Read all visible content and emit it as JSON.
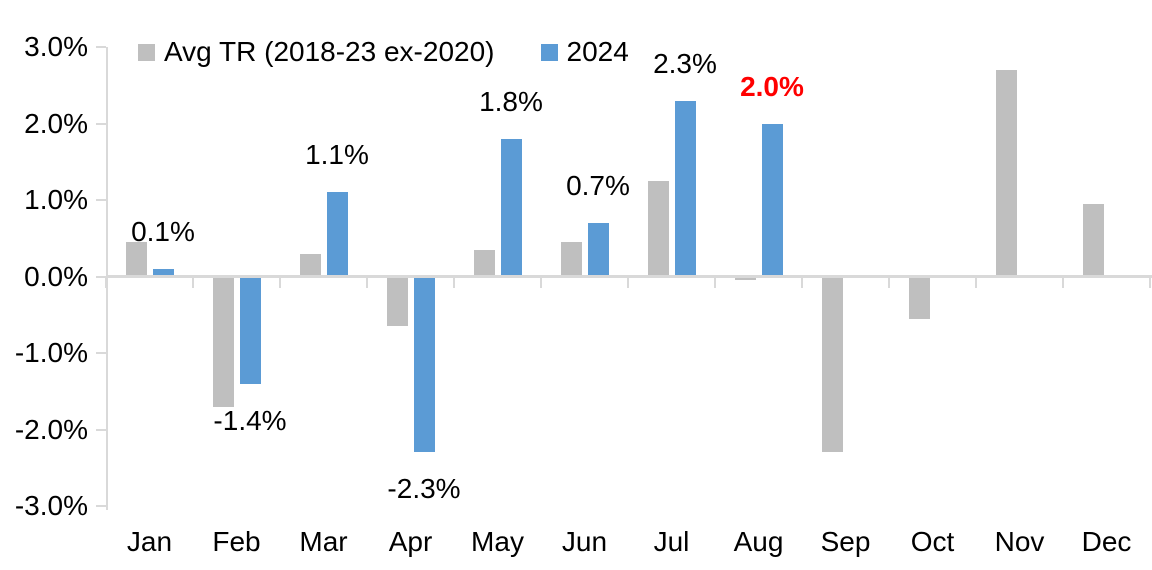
{
  "chart_data": {
    "type": "bar",
    "title": "",
    "categories": [
      "Jan",
      "Feb",
      "Mar",
      "Apr",
      "May",
      "Jun",
      "Jul",
      "Aug",
      "Sep",
      "Oct",
      "Nov",
      "Dec"
    ],
    "series": [
      {
        "name": "Avg TR (2018-23 ex-2020)",
        "color": "#bfbfbf",
        "values": [
          0.45,
          -1.7,
          0.3,
          -0.65,
          0.35,
          0.45,
          1.25,
          -0.05,
          -2.3,
          -0.55,
          2.7,
          0.95
        ]
      },
      {
        "name": "2024",
        "color": "#5b9bd5",
        "values": [
          0.1,
          -1.4,
          1.1,
          -2.3,
          1.8,
          0.7,
          2.3,
          2.0,
          null,
          null,
          null,
          null
        ]
      }
    ],
    "data_labels": [
      {
        "text": "0.1%",
        "color": "#000000",
        "bold": false
      },
      {
        "text": "-1.4%",
        "color": "#000000",
        "bold": false
      },
      {
        "text": "1.1%",
        "color": "#000000",
        "bold": false
      },
      {
        "text": "-2.3%",
        "color": "#000000",
        "bold": false
      },
      {
        "text": "1.8%",
        "color": "#000000",
        "bold": false
      },
      {
        "text": "0.7%",
        "color": "#000000",
        "bold": false
      },
      {
        "text": "2.3%",
        "color": "#000000",
        "bold": false
      },
      {
        "text": "2.0%",
        "color": "#ff0000",
        "bold": true
      },
      null,
      null,
      null,
      null
    ],
    "y_ticks": [
      {
        "value": 3.0,
        "label": "3.0%"
      },
      {
        "value": 2.0,
        "label": "2.0%"
      },
      {
        "value": 1.0,
        "label": "1.0%"
      },
      {
        "value": 0.0,
        "label": "0.0%"
      },
      {
        "value": -1.0,
        "label": "-1.0%"
      },
      {
        "value": -2.0,
        "label": "-2.0%"
      },
      {
        "value": -3.0,
        "label": "-3.0%"
      }
    ],
    "ylim": [
      -3.0,
      3.0
    ],
    "xlabel": "",
    "ylabel": "",
    "legend_position": "top",
    "grid": false,
    "axis_color": "#d9d9d9",
    "text_color": "#000000"
  }
}
